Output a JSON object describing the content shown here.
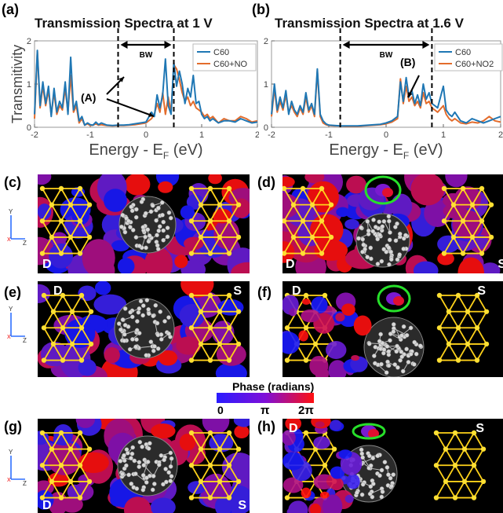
{
  "charts": [
    {
      "panel_label": "(a)",
      "title": "Transmission Spectra at 1 V",
      "ylabel": "Transmitivity",
      "xlabel_main": "Energy - E",
      "xlabel_sub": "F",
      "xlabel_unit": " (eV)",
      "bw_label": "BW",
      "annotation": "(A)",
      "legend": [
        "C60",
        "C60+NO"
      ]
    },
    {
      "panel_label": "(b)",
      "title": "Transmission Spectra at 1.6 V",
      "ylabel": "",
      "xlabel_main": "Energy - E",
      "xlabel_sub": "F",
      "xlabel_unit": " (eV)",
      "bw_label": "BW",
      "annotation": "(B)",
      "legend": [
        "C60",
        "C60+NO2"
      ]
    }
  ],
  "chart_data": [
    {
      "type": "line",
      "title": "Transmission Spectra at 1 V",
      "xlabel": "Energy - EF (eV)",
      "ylabel": "Transmitivity",
      "xlim": [
        -2,
        2
      ],
      "ylim": [
        0,
        2
      ],
      "xticks": [
        "-2",
        "-1",
        "0",
        "1",
        "2"
      ],
      "yticks": [
        "0",
        "1",
        "2"
      ],
      "bias_window": [
        -0.5,
        0.5
      ],
      "series": [
        {
          "name": "C60",
          "color": "#1f77b4",
          "x": [
            -2.0,
            -1.95,
            -1.9,
            -1.85,
            -1.8,
            -1.75,
            -1.7,
            -1.65,
            -1.6,
            -1.55,
            -1.5,
            -1.45,
            -1.4,
            -1.35,
            -1.3,
            -1.25,
            -1.2,
            -1.15,
            -1.1,
            -1.05,
            -1.0,
            -0.95,
            -0.9,
            -0.85,
            -0.8,
            -0.7,
            -0.6,
            -0.5,
            -0.4,
            -0.3,
            -0.2,
            -0.1,
            0.0,
            0.1,
            0.15,
            0.2,
            0.25,
            0.3,
            0.35,
            0.4,
            0.45,
            0.5,
            0.55,
            0.6,
            0.65,
            0.7,
            0.75,
            0.8,
            0.85,
            0.9,
            0.95,
            1.0,
            1.05,
            1.1,
            1.15,
            1.2,
            1.3,
            1.4,
            1.5,
            1.6,
            1.7,
            1.8,
            1.9,
            2.0
          ],
          "y": [
            0.3,
            1.78,
            0.5,
            1.05,
            0.55,
            0.95,
            0.25,
            0.9,
            0.35,
            0.6,
            0.45,
            1.05,
            0.3,
            1.62,
            0.4,
            0.6,
            0.15,
            0.25,
            0.05,
            0.1,
            0.06,
            0.05,
            0.12,
            0.06,
            0.1,
            0.05,
            0.04,
            0.05,
            0.05,
            0.06,
            0.08,
            0.1,
            0.12,
            0.35,
            0.25,
            0.75,
            0.45,
            0.75,
            1.58,
            0.5,
            0.3,
            1.5,
            0.95,
            1.3,
            1.0,
            0.55,
            0.9,
            0.7,
            1.2,
            0.55,
            0.6,
            0.3,
            0.2,
            0.25,
            0.15,
            0.2,
            0.1,
            0.15,
            0.15,
            0.12,
            0.2,
            0.15,
            0.1,
            0.12
          ]
        },
        {
          "name": "C60+NO",
          "color": "#e36c2c",
          "x": [
            -2.0,
            -1.95,
            -1.9,
            -1.85,
            -1.8,
            -1.75,
            -1.7,
            -1.65,
            -1.6,
            -1.55,
            -1.5,
            -1.45,
            -1.4,
            -1.35,
            -1.3,
            -1.25,
            -1.2,
            -1.15,
            -1.1,
            -1.05,
            -1.0,
            -0.95,
            -0.9,
            -0.85,
            -0.8,
            -0.7,
            -0.6,
            -0.5,
            -0.4,
            -0.3,
            -0.2,
            -0.1,
            0.0,
            0.1,
            0.15,
            0.2,
            0.25,
            0.3,
            0.35,
            0.4,
            0.45,
            0.5,
            0.55,
            0.6,
            0.65,
            0.7,
            0.75,
            0.8,
            0.85,
            0.9,
            0.95,
            1.0,
            1.05,
            1.1,
            1.15,
            1.2,
            1.3,
            1.4,
            1.5,
            1.6,
            1.7,
            1.8,
            1.9,
            2.0
          ],
          "y": [
            0.2,
            1.75,
            0.45,
            0.95,
            0.5,
            0.85,
            0.3,
            0.8,
            0.3,
            0.5,
            0.4,
            0.9,
            0.35,
            1.2,
            0.35,
            0.5,
            0.1,
            0.2,
            0.05,
            0.08,
            0.04,
            0.05,
            0.08,
            0.05,
            0.06,
            0.04,
            0.03,
            0.04,
            0.04,
            0.05,
            0.06,
            0.08,
            0.1,
            0.2,
            0.3,
            0.55,
            0.35,
            0.8,
            0.3,
            0.7,
            0.35,
            1.45,
            1.35,
            1.1,
            0.8,
            0.6,
            0.7,
            0.5,
            0.6,
            0.45,
            0.4,
            0.35,
            0.25,
            0.3,
            0.2,
            0.25,
            0.1,
            0.2,
            0.15,
            0.15,
            0.25,
            0.2,
            0.12,
            0.15
          ]
        }
      ]
    },
    {
      "type": "line",
      "title": "Transmission Spectra at 1.6 V",
      "xlabel": "Energy - EF (eV)",
      "ylabel": "",
      "xlim": [
        -2,
        2
      ],
      "ylim": [
        0,
        2
      ],
      "xticks": [
        "-2",
        "-1",
        "0",
        "1",
        "2"
      ],
      "yticks": [
        "0",
        "1",
        "2"
      ],
      "bias_window": [
        -0.8,
        0.8
      ],
      "series": [
        {
          "name": "C60",
          "color": "#1f77b4",
          "x": [
            -2.0,
            -1.95,
            -1.9,
            -1.85,
            -1.8,
            -1.75,
            -1.7,
            -1.65,
            -1.6,
            -1.55,
            -1.5,
            -1.45,
            -1.4,
            -1.35,
            -1.3,
            -1.25,
            -1.2,
            -1.15,
            -1.1,
            -1.05,
            -1.0,
            -0.9,
            -0.8,
            -0.7,
            -0.6,
            -0.5,
            -0.4,
            -0.3,
            -0.2,
            -0.1,
            0.0,
            0.1,
            0.2,
            0.25,
            0.3,
            0.35,
            0.4,
            0.45,
            0.5,
            0.55,
            0.6,
            0.65,
            0.7,
            0.75,
            0.8,
            0.85,
            0.9,
            1.0,
            1.05,
            1.1,
            1.15,
            1.2,
            1.3,
            1.4,
            1.5,
            1.6,
            1.7,
            1.8,
            1.9,
            2.0
          ],
          "y": [
            0.3,
            1.0,
            0.4,
            0.7,
            0.45,
            0.85,
            0.3,
            0.6,
            0.4,
            0.3,
            0.5,
            0.35,
            0.8,
            0.4,
            0.55,
            0.3,
            1.35,
            0.3,
            0.15,
            0.08,
            0.05,
            0.04,
            0.03,
            0.03,
            0.03,
            0.03,
            0.04,
            0.05,
            0.06,
            0.07,
            0.1,
            0.15,
            0.25,
            1.05,
            0.6,
            1.15,
            0.7,
            0.85,
            0.55,
            0.75,
            0.5,
            1.0,
            0.65,
            0.8,
            0.55,
            0.5,
            0.45,
            0.95,
            0.4,
            0.3,
            0.25,
            0.35,
            0.15,
            0.1,
            0.2,
            0.15,
            0.1,
            0.15,
            0.2,
            0.25
          ]
        },
        {
          "name": "C60+NO2",
          "color": "#e36c2c",
          "x": [
            -2.0,
            -1.95,
            -1.9,
            -1.85,
            -1.8,
            -1.75,
            -1.7,
            -1.65,
            -1.6,
            -1.55,
            -1.5,
            -1.45,
            -1.4,
            -1.35,
            -1.3,
            -1.25,
            -1.2,
            -1.15,
            -1.1,
            -1.05,
            -1.0,
            -0.9,
            -0.8,
            -0.7,
            -0.6,
            -0.5,
            -0.4,
            -0.3,
            -0.2,
            -0.1,
            0.0,
            0.1,
            0.2,
            0.25,
            0.3,
            0.35,
            0.4,
            0.45,
            0.5,
            0.55,
            0.6,
            0.65,
            0.7,
            0.75,
            0.8,
            0.85,
            0.9,
            1.0,
            1.05,
            1.1,
            1.15,
            1.2,
            1.3,
            1.4,
            1.5,
            1.6,
            1.7,
            1.8,
            1.9,
            2.0
          ],
          "y": [
            0.25,
            0.9,
            0.35,
            0.6,
            0.4,
            0.75,
            0.35,
            0.5,
            0.35,
            0.25,
            0.45,
            0.3,
            0.7,
            0.35,
            0.5,
            0.25,
            1.3,
            0.25,
            0.1,
            0.06,
            0.04,
            0.03,
            0.03,
            0.02,
            0.02,
            0.02,
            0.03,
            0.04,
            0.05,
            0.06,
            0.08,
            0.12,
            0.2,
            1.12,
            0.55,
            0.95,
            0.6,
            0.7,
            0.5,
            0.6,
            0.45,
            0.8,
            0.55,
            0.6,
            0.45,
            0.4,
            0.35,
            0.5,
            0.3,
            0.2,
            0.15,
            0.2,
            0.1,
            0.08,
            0.12,
            0.1,
            0.15,
            0.25,
            0.15,
            0.12
          ]
        }
      ]
    }
  ],
  "panels": [
    {
      "label": "(c)",
      "left_lead": "D",
      "right_lead": "S",
      "adsorbate": false
    },
    {
      "label": "(d)",
      "left_lead": "D",
      "right_lead": "S",
      "adsorbate": true
    },
    {
      "label": "(e)",
      "left_lead": "D",
      "right_lead": "S",
      "adsorbate": false
    },
    {
      "label": "(f)",
      "left_lead": "D",
      "right_lead": "S",
      "adsorbate": true
    },
    {
      "label": "(g)",
      "left_lead": "D",
      "right_lead": "S",
      "adsorbate": false
    },
    {
      "label": "(h)",
      "left_lead": "D",
      "right_lead": "S",
      "adsorbate": true
    }
  ],
  "colorbar": {
    "title": "Phase (radians)",
    "ticks": [
      "0",
      "π",
      "2π"
    ],
    "colors": [
      "#2a1cff",
      "#7f0fd8",
      "#ff1010"
    ]
  },
  "axes_indicator": {
    "y_label": "Y",
    "z_label": "Z",
    "x_label": "X"
  }
}
